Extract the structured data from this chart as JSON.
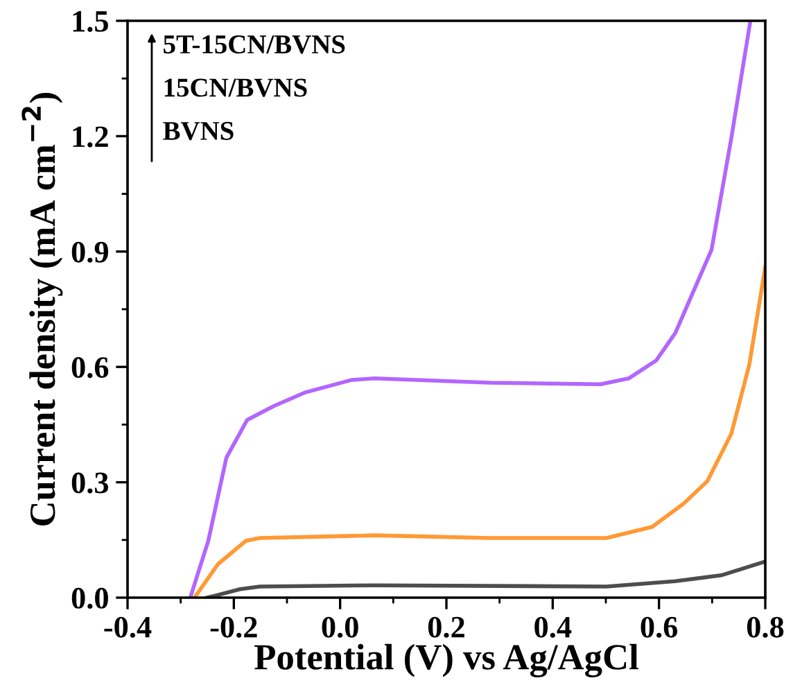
{
  "chart_data": {
    "type": "line",
    "xlabel": "Potential (V) vs Ag/AgCl",
    "ylabel": "Current density (mA cm$^{−2}$)",
    "xlim": [
      -0.4,
      0.8
    ],
    "ylim": [
      0,
      1.5
    ],
    "xticks": [
      -0.4,
      -0.2,
      {
        "value": 0,
        "label": "0.0"
      },
      0.2,
      0.4,
      0.6,
      0.8
    ],
    "yticks": [
      {
        "value": 0,
        "label": "0.0"
      },
      0.3,
      0.6,
      0.9,
      1.2,
      1.5
    ],
    "grid": false,
    "legend": false,
    "marker": "none",
    "line_style": "solid",
    "annotations": [
      "5T-15CN/BVNS",
      "15CN/BVNS",
      "BVNS"
    ],
    "series": [
      {
        "color": "#4d4d4d",
        "x": [
          -0.25,
          -0.23,
          -0.188,
          -0.151,
          0.065,
          0.501,
          0.631,
          0.717,
          0.8
        ],
        "values": [
          0,
          0.007,
          0.022,
          0.029,
          0.032,
          0.029,
          0.043,
          0.058,
          0.094
        ]
      },
      {
        "color": "#ff9933",
        "x": [
          -0.274,
          -0.23,
          -0.177,
          -0.151,
          0.065,
          0.282,
          0.501,
          0.587,
          0.647,
          0.691,
          0.736,
          0.77,
          0.8
        ],
        "values": [
          0,
          0.087,
          0.148,
          0.155,
          0.162,
          0.155,
          0.155,
          0.184,
          0.245,
          0.303,
          0.426,
          0.606,
          0.86
        ]
      },
      {
        "color": "#b266ff",
        "x": [
          -0.282,
          -0.248,
          -0.214,
          -0.175,
          -0.125,
          -0.065,
          0.021,
          0.065,
          0.282,
          0.49,
          0.543,
          0.595,
          0.631,
          0.665,
          0.699,
          0.736,
          0.772
        ],
        "values": [
          0,
          0.148,
          0.364,
          0.462,
          0.498,
          0.534,
          0.566,
          0.57,
          0.559,
          0.555,
          0.57,
          0.617,
          0.689,
          0.797,
          0.905,
          1.194,
          1.5
        ]
      }
    ]
  }
}
